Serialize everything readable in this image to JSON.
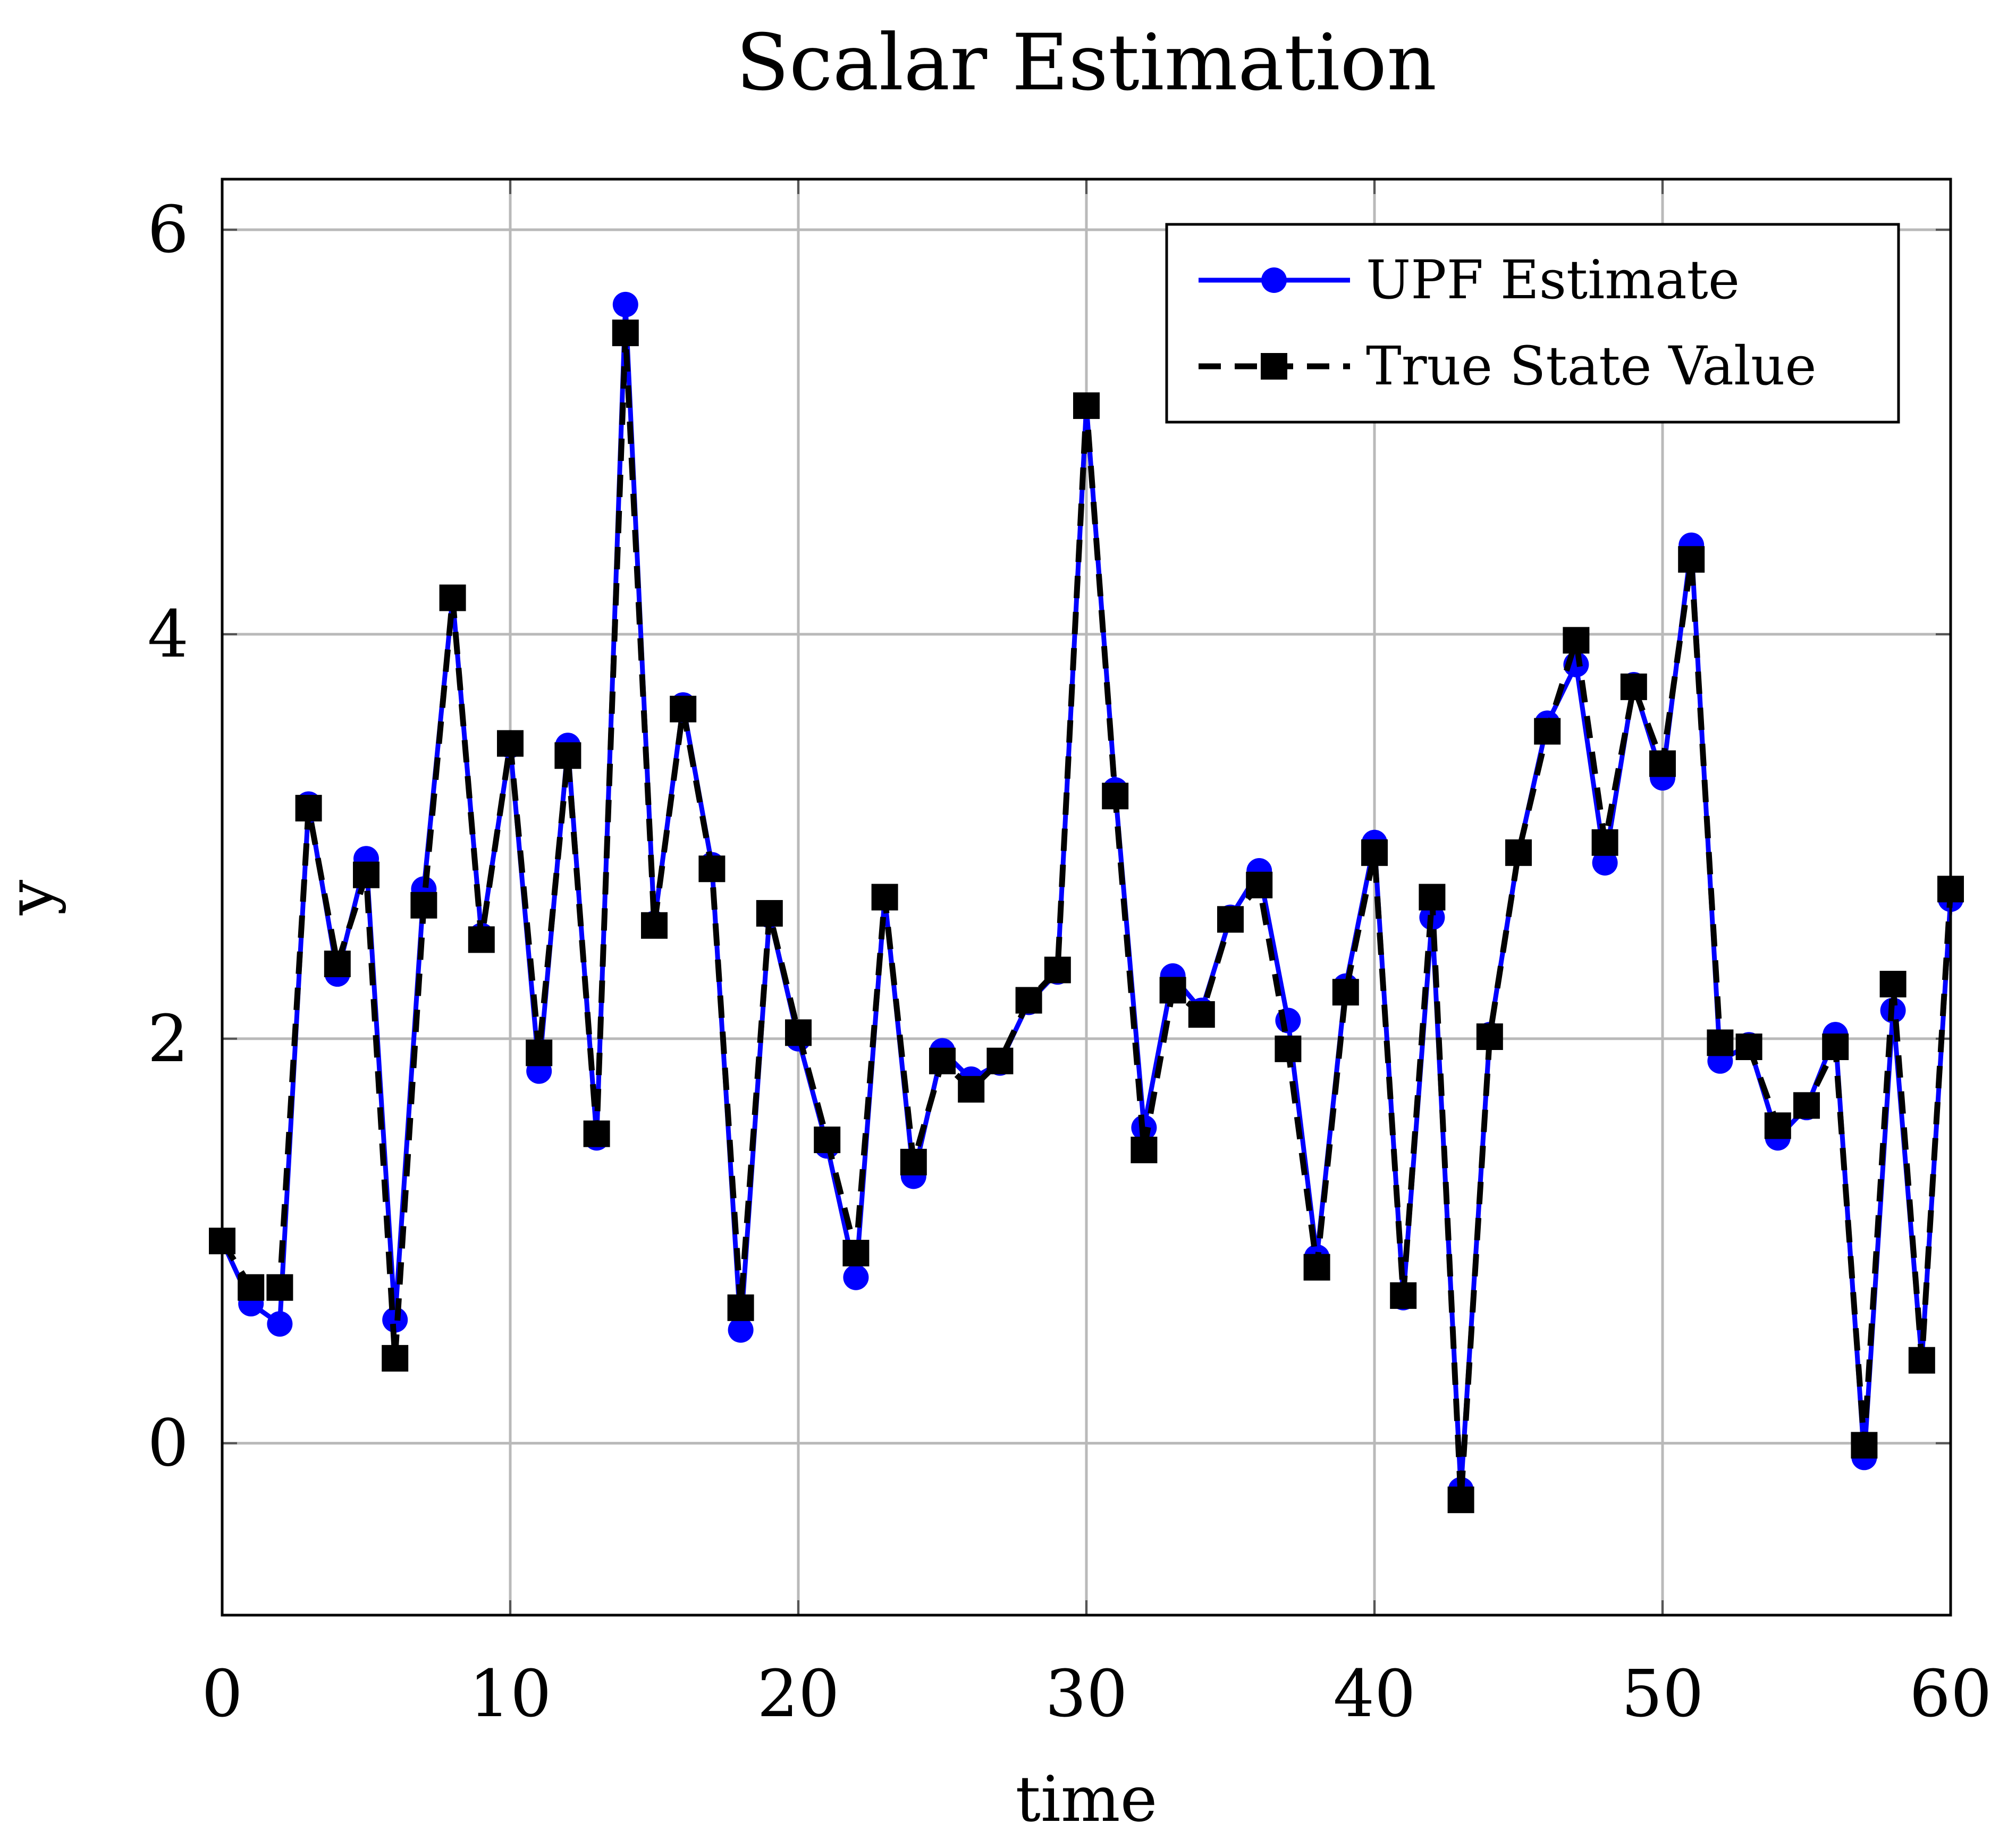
{
  "chart_data": {
    "type": "line",
    "title": "Scalar Estimation",
    "xlabel": "time",
    "ylabel": "y",
    "xlim": [
      0,
      60
    ],
    "ylim": [
      -0.85,
      6.25
    ],
    "xticks": [
      0,
      10,
      20,
      30,
      40,
      50,
      60
    ],
    "yticks": [
      0,
      2,
      4,
      6
    ],
    "grid": true,
    "legend_position": "top-right",
    "series": [
      {
        "name": "UPF Estimate",
        "color": "#0000ff",
        "line_style": "solid",
        "marker": "circle",
        "x": [
          0,
          1,
          2,
          3,
          4,
          5,
          6,
          7,
          8,
          9,
          10,
          11,
          12,
          13,
          14,
          15,
          16,
          17,
          18,
          19,
          20,
          21,
          22,
          23,
          24,
          25,
          26,
          27,
          28,
          29,
          30,
          31,
          32,
          33,
          34,
          35,
          36,
          37,
          38,
          39,
          40,
          41,
          42,
          43,
          44,
          45,
          46,
          47,
          48,
          49,
          50,
          51,
          52,
          53,
          54,
          55,
          56,
          57,
          58,
          59,
          60
        ],
        "y": [
          1.0,
          0.69,
          0.59,
          3.16,
          2.32,
          2.89,
          0.61,
          2.74,
          4.18,
          2.51,
          3.45,
          1.84,
          3.45,
          1.51,
          5.63,
          2.57,
          3.65,
          2.86,
          0.56,
          2.61,
          2.0,
          1.47,
          0.82,
          2.7,
          1.32,
          1.94,
          1.8,
          1.88,
          2.18,
          2.33,
          5.13,
          3.23,
          1.56,
          2.31,
          2.14,
          2.6,
          2.83,
          2.09,
          0.92,
          2.26,
          2.97,
          0.72,
          2.6,
          -0.23,
          2.02,
          2.92,
          3.56,
          3.85,
          2.87,
          3.75,
          3.29,
          4.44,
          1.89,
          1.97,
          1.51,
          1.66,
          2.02,
          -0.07,
          2.14,
          0.41,
          2.69
        ]
      },
      {
        "name": "True State Value",
        "color": "#000000",
        "line_style": "dashed",
        "marker": "square",
        "x": [
          0,
          1,
          2,
          3,
          4,
          5,
          6,
          7,
          8,
          9,
          10,
          11,
          12,
          13,
          14,
          15,
          16,
          17,
          18,
          19,
          20,
          21,
          22,
          23,
          24,
          25,
          26,
          27,
          28,
          29,
          30,
          31,
          32,
          33,
          34,
          35,
          36,
          37,
          38,
          39,
          40,
          41,
          42,
          43,
          44,
          45,
          46,
          47,
          48,
          49,
          50,
          51,
          52,
          53,
          54,
          55,
          56,
          57,
          58,
          59,
          60
        ],
        "y": [
          1.0,
          0.77,
          0.77,
          3.14,
          2.37,
          2.81,
          0.42,
          2.66,
          4.18,
          2.49,
          3.46,
          1.93,
          3.4,
          1.53,
          5.49,
          2.56,
          3.63,
          2.84,
          0.67,
          2.62,
          2.03,
          1.5,
          0.94,
          2.7,
          1.39,
          1.89,
          1.75,
          1.89,
          2.19,
          2.34,
          5.13,
          3.2,
          1.45,
          2.24,
          2.12,
          2.59,
          2.76,
          1.95,
          0.87,
          2.23,
          2.92,
          0.73,
          2.7,
          -0.28,
          2.01,
          2.92,
          3.52,
          3.97,
          2.97,
          3.74,
          3.36,
          4.37,
          1.98,
          1.96,
          1.57,
          1.67,
          1.96,
          -0.01,
          2.27,
          0.41,
          2.74
        ]
      }
    ]
  }
}
